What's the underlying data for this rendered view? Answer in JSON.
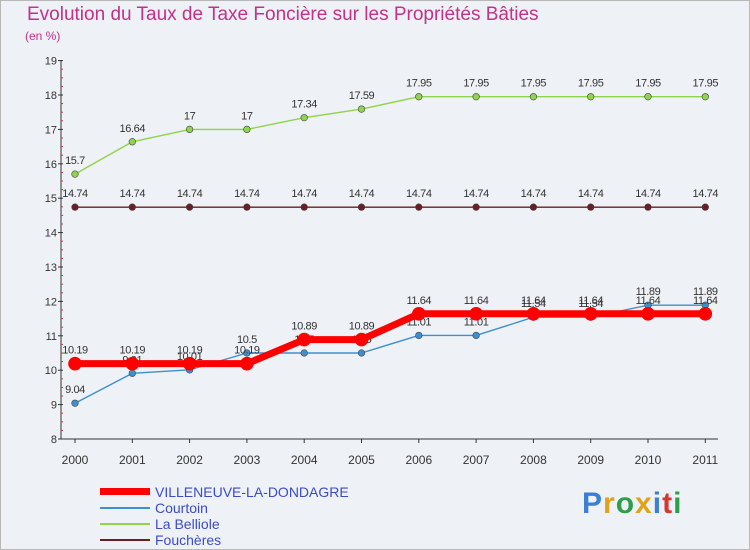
{
  "chart_data": {
    "type": "line",
    "title": "Evolution du Taux de Taxe Foncière sur les Propriétés Bâties",
    "ylabel": "(en %)",
    "xlabel": "",
    "categories": [
      "2000",
      "2001",
      "2002",
      "2003",
      "2004",
      "2005",
      "2006",
      "2007",
      "2008",
      "2009",
      "2010",
      "2011"
    ],
    "ylim": [
      8,
      19
    ],
    "yticks": [
      "8",
      "9",
      "10",
      "11",
      "12",
      "13",
      "14",
      "15",
      "16",
      "17",
      "18",
      "19"
    ],
    "series": [
      {
        "name": "Fouchères",
        "color": "#6b1e22",
        "labels": [
          "14.74",
          "14.74",
          "14.74",
          "14.74",
          "14.74",
          "14.74",
          "14.74",
          "14.74",
          "14.74",
          "14.74",
          "14.74",
          "14.74"
        ],
        "values": [
          14.74,
          14.74,
          14.74,
          14.74,
          14.74,
          14.74,
          14.74,
          14.74,
          14.74,
          14.74,
          14.74,
          14.74
        ]
      },
      {
        "name": "La Belliole",
        "color": "#8fd44a",
        "labels": [
          "15.7",
          "16.64",
          "17",
          "17",
          "17.34",
          "17.59",
          "17.95",
          "17.95",
          "17.95",
          "17.95",
          "17.95",
          "17.95"
        ],
        "values": [
          15.7,
          16.64,
          17,
          17,
          17.34,
          17.59,
          17.95,
          17.95,
          17.95,
          17.95,
          17.95,
          17.95
        ]
      },
      {
        "name": "Courtoin",
        "color": "#3d8fd1",
        "labels": [
          "9.04",
          "9.91",
          "10.01",
          "10.5",
          "10.5",
          "10.5",
          "11.01",
          "11.01",
          "11.54",
          "11.54",
          "11.89",
          "11.89"
        ],
        "values": [
          9.04,
          9.91,
          10.01,
          10.5,
          10.5,
          10.5,
          11.01,
          11.01,
          11.54,
          11.54,
          11.89,
          11.89
        ]
      },
      {
        "name": "VILLENEUVE-LA-DONDAGRE",
        "color": "#ff0000",
        "labels": [
          "10.19",
          "10.19",
          "10.19",
          "10.19",
          "10.89",
          "10.89",
          "11.64",
          "11.64",
          "11.64",
          "11.64",
          "11.64",
          "11.64"
        ],
        "values": [
          10.19,
          10.19,
          10.19,
          10.19,
          10.89,
          10.89,
          11.64,
          11.64,
          11.64,
          11.64,
          11.64,
          11.64
        ]
      }
    ],
    "legend_order": [
      "VILLENEUVE-LA-DONDAGRE",
      "Courtoin",
      "La Belliole",
      "Fouchères"
    ],
    "grid": false,
    "legend_position": "bottom-left"
  },
  "logo": {
    "letters": [
      "P",
      "r",
      "o",
      "x",
      "i",
      "t",
      "i"
    ],
    "colors": [
      "#3b7fd4",
      "#e0a317",
      "#2d9f4a",
      "#e0a317",
      "#3b7fd4",
      "#d5372e",
      "#2d9f4a"
    ]
  }
}
